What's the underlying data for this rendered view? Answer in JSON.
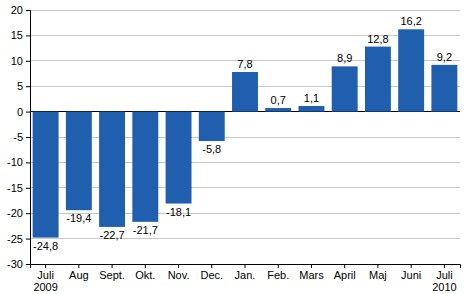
{
  "chart_data": {
    "type": "bar",
    "categories": [
      "Juli\n2009",
      "Aug",
      "Sept.",
      "Okt.",
      "Nov.",
      "Dec.",
      "Jan.",
      "Feb.",
      "Mars",
      "April",
      "Maj",
      "Juni",
      "Juli\n2010"
    ],
    "values": [
      -24.8,
      -19.4,
      -22.7,
      -21.7,
      -18.1,
      -5.8,
      7.8,
      0.7,
      1.1,
      8.9,
      12.8,
      16.2,
      9.2
    ],
    "value_labels": [
      "-24,8",
      "-19,4",
      "-22,7",
      "-21,7",
      "-18,1",
      "-5,8",
      "7,8",
      "0,7",
      "1,1",
      "8,9",
      "12,8",
      "16,2",
      "9,2"
    ],
    "data_labels": true,
    "color": "#1f5fae",
    "ylim": [
      -30,
      20
    ],
    "yticks": [
      -30,
      -25,
      -20,
      -15,
      -10,
      -5,
      0,
      5,
      10,
      15,
      20
    ],
    "grid": true
  }
}
